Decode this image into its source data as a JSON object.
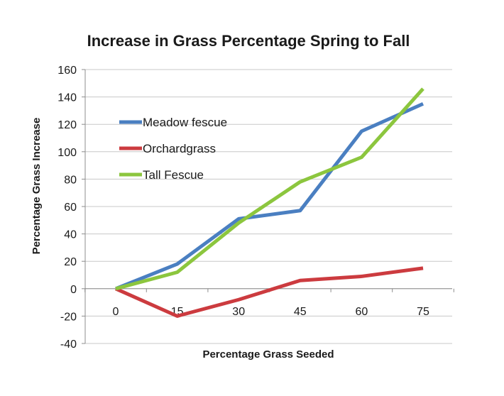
{
  "chart_data": {
    "type": "line",
    "title": "Increase in Grass Percentage Spring to Fall",
    "xlabel": "Percentage Grass Seeded",
    "ylabel": "Percentage Grass Increase",
    "x": [
      0,
      15,
      30,
      45,
      60,
      75
    ],
    "ylim": [
      -40,
      160
    ],
    "yticks": [
      -40,
      -20,
      0,
      20,
      40,
      60,
      80,
      100,
      120,
      140,
      160
    ],
    "grid": true,
    "legend_position": "upper-left",
    "series": [
      {
        "name": "Meadow fescue",
        "color": "#4a7fc1",
        "values": [
          0,
          18,
          51,
          57,
          115,
          135
        ]
      },
      {
        "name": "Orchardgrass",
        "color": "#cc3b3f",
        "values": [
          0,
          -20,
          -8,
          6,
          9,
          15
        ]
      },
      {
        "name": "Tall Fescue",
        "color": "#8cc63e",
        "values": [
          0,
          12,
          48,
          78,
          96,
          146
        ]
      }
    ]
  }
}
